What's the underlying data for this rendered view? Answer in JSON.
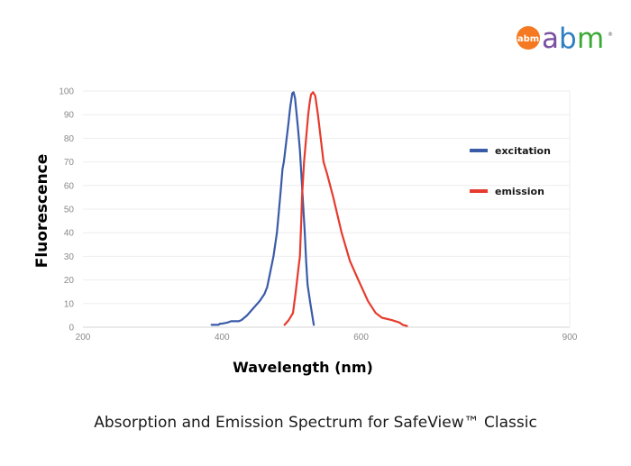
{
  "brand": {
    "badge_text": "abm",
    "word_a": "a",
    "word_b": "b",
    "word_m": "m",
    "registered": "®",
    "colors": {
      "badge": "#f47920",
      "a": "#7a4fa0",
      "b": "#2e7ec2",
      "m": "#3aa935"
    }
  },
  "caption": "Absorption and Emission Spectrum for SafeView™ Classic",
  "chart_data": {
    "type": "line",
    "title": "Absorption and Emission Spectrum for SafeView™ Classic",
    "xlabel": "Wavelength (nm)",
    "ylabel": "Fluorescence",
    "xlim": [
      200,
      900
    ],
    "ylim": [
      0,
      100
    ],
    "x_ticks": [
      200,
      400,
      600,
      900
    ],
    "y_ticks": [
      0,
      10,
      20,
      30,
      40,
      50,
      60,
      70,
      80,
      90,
      100
    ],
    "grid": true,
    "legend_position": "right",
    "series": [
      {
        "name": "excitation",
        "color": "#3a5ba8",
        "points": [
          [
            385,
            1
          ],
          [
            395,
            1
          ],
          [
            397,
            1.5
          ],
          [
            400,
            1.5
          ],
          [
            408,
            2
          ],
          [
            413,
            2.5
          ],
          [
            424,
            2.5
          ],
          [
            428,
            3
          ],
          [
            436,
            5
          ],
          [
            445,
            8
          ],
          [
            454,
            11
          ],
          [
            461,
            14
          ],
          [
            465,
            17
          ],
          [
            474,
            30
          ],
          [
            479,
            40
          ],
          [
            483,
            53
          ],
          [
            485,
            60
          ],
          [
            487,
            67
          ],
          [
            489,
            70
          ],
          [
            493,
            80
          ],
          [
            495,
            85
          ],
          [
            498,
            93
          ],
          [
            501,
            99
          ],
          [
            503,
            99.5
          ],
          [
            505,
            97
          ],
          [
            509,
            85
          ],
          [
            512,
            75
          ],
          [
            516,
            55
          ],
          [
            519,
            40
          ],
          [
            521,
            28
          ],
          [
            523,
            18
          ],
          [
            527,
            10
          ],
          [
            532,
            1
          ]
        ]
      },
      {
        "name": "emission",
        "color": "#e63b2e",
        "points": [
          [
            490,
            1
          ],
          [
            496,
            3
          ],
          [
            502,
            6
          ],
          [
            506,
            15
          ],
          [
            510,
            25
          ],
          [
            512,
            30
          ],
          [
            514,
            45
          ],
          [
            515,
            55
          ],
          [
            516,
            60
          ],
          [
            518,
            70
          ],
          [
            521,
            80
          ],
          [
            524,
            90
          ],
          [
            526,
            95
          ],
          [
            528,
            98.5
          ],
          [
            531,
            99.5
          ],
          [
            534,
            98
          ],
          [
            538,
            90
          ],
          [
            542,
            80
          ],
          [
            546,
            70
          ],
          [
            551,
            65
          ],
          [
            560,
            55
          ],
          [
            572,
            40
          ],
          [
            584,
            28
          ],
          [
            596,
            20
          ],
          [
            610,
            11
          ],
          [
            621,
            6
          ],
          [
            630,
            4
          ],
          [
            644,
            3
          ],
          [
            655,
            2
          ],
          [
            660,
            1
          ],
          [
            666,
            0.5
          ]
        ]
      }
    ]
  }
}
